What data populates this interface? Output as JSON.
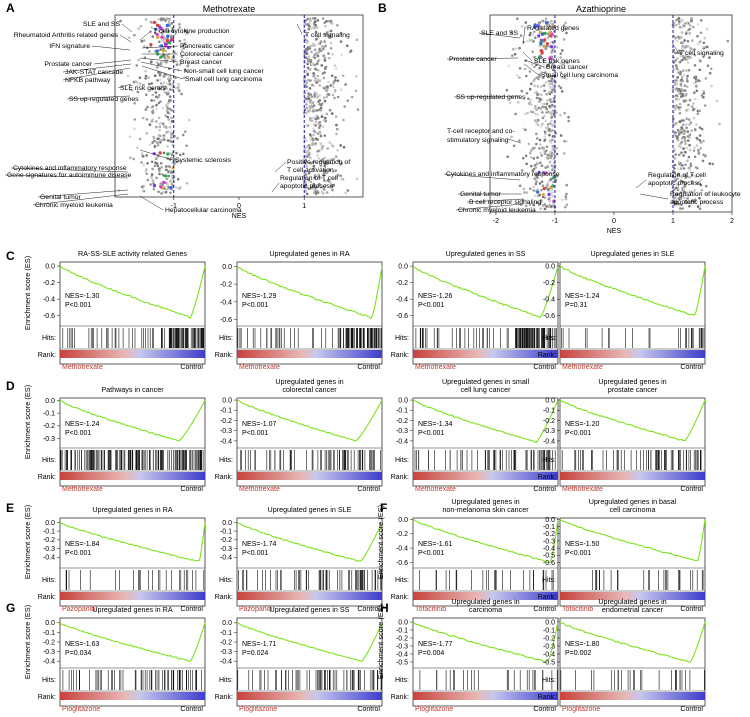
{
  "panels": {
    "A": "A",
    "B": "B",
    "C": "C",
    "D": "D",
    "E": "E",
    "F": "F",
    "G": "G",
    "H": "H"
  },
  "colors": {
    "curve": "#7ce21c",
    "drug_label": "#c33a2e",
    "dashed": "#1a1aa8",
    "rank_red": "#c8423c",
    "rank_blue": "#3d3dcc",
    "point_grey": "#8a8a8a"
  },
  "nes_common": {
    "xlabel": "NES",
    "ylabel": "Enrichment score (ES)",
    "hits_label": "Hits:",
    "rank_label": "Rank:",
    "control_label": "Control"
  },
  "chart_data": [
    {
      "id": "A",
      "type": "scatter",
      "title": "Methotrexate",
      "xlabel": "NES",
      "xlim": [
        -1.9,
        1.9
      ],
      "xticks": [
        "-1",
        "0",
        "1"
      ],
      "xtick_values": [
        -1,
        0,
        1
      ],
      "cutoffs": [
        -1,
        1
      ],
      "annotations_left": [
        "SLE and SS",
        "T cell cytokine production",
        "Rheumatoid Arthritis related genes",
        "IFN signature",
        "Pancreatic cancer",
        "Colorectal cancer",
        "Breast cancer",
        "Non-small cell lung cancer",
        "Prostate cancer",
        "Small cell lung carcinoma",
        "JAK-STAT cascade",
        "NFKB pathway",
        "SLE risk genes",
        "SS up-regulated genes",
        "Systemic sclerosis",
        "Cytokines and inflammatory response",
        "Gene signatures for autoimmune disease",
        "Genital tumor",
        "Chronic myeloid leukemia",
        "Hepatocellular carcinoma"
      ],
      "annotations_right": [
        "T cell signaling",
        "Positive regulation of T cell activation",
        "Regulation of T cell apoptotic process"
      ]
    },
    {
      "id": "B",
      "type": "scatter",
      "title": "Azathioprine",
      "xlabel": "NES",
      "xlim": [
        -2.1,
        2.0
      ],
      "xticks": [
        "-2",
        "-1",
        "0",
        "1",
        "2"
      ],
      "xtick_values": [
        -2,
        -1,
        0,
        1,
        2
      ],
      "cutoffs": [
        -1,
        1
      ],
      "annotations_left": [
        "SLE and SS",
        "RA related genes",
        "SLE risk genes",
        "Prostate cancer",
        "Breast cancer",
        "Small cell lung carcinoma",
        "SS up-regulated genes",
        "T-cell receptor and co-stimulatory signaling",
        "Cytokines and inflammatory response",
        "Genital tumor",
        "B cell receptor signaling",
        "Chronic myeloid leukemia"
      ],
      "annotations_right": [
        "T cell signaling",
        "Regulation of T cell apoptotic process",
        "Regulation of leukocyte apoptotic process"
      ]
    },
    {
      "id": "C1",
      "type": "line",
      "title": "RA-SS-SLE activity related Genes",
      "nes": "NES=-1.30",
      "p": "P<0.001",
      "drug": "Methotrexate",
      "ylim": [
        -0.7,
        0.05
      ],
      "yticks": [
        "-0.6",
        "-0.4",
        "-0.2",
        "0.0"
      ],
      "ytick_values": [
        -0.6,
        -0.4,
        -0.2,
        0.0
      ],
      "min_es": -0.62,
      "min_at": 0.9,
      "hit_profile": "dense-right",
      "rank_colors": [
        "#c8423c",
        "#3d3dcc"
      ]
    },
    {
      "id": "C2",
      "type": "line",
      "title": "Upregulated genes in RA",
      "nes": "NES=-1.29",
      "p": "P<0.001",
      "drug": "Methotrexate",
      "ylim": [
        -0.65,
        0.05
      ],
      "yticks": [
        "-0.6",
        "-0.4",
        "-0.2",
        "0.0"
      ],
      "ytick_values": [
        -0.6,
        -0.4,
        -0.2,
        0.0
      ],
      "min_es": -0.58,
      "min_at": 0.93,
      "hit_profile": "dense-right"
    },
    {
      "id": "C3",
      "type": "line",
      "title": "Upregulated genes in SS",
      "nes": "NES=-1.26",
      "p": "P<0.001",
      "drug": "Methotrexate",
      "ylim": [
        -0.7,
        0.05
      ],
      "yticks": [
        "-0.6",
        "-0.4",
        "-0.2",
        "0.0"
      ],
      "ytick_values": [
        -0.6,
        -0.4,
        -0.2,
        0.0
      ],
      "min_es": -0.62,
      "min_at": 0.88,
      "hit_profile": "dense-right"
    },
    {
      "id": "C4",
      "type": "line",
      "title": "Upregulated genes in SLE",
      "nes": "NES=-1.24",
      "p": "P=0.31",
      "drug": "Methotrexate",
      "ylim": [
        -0.7,
        0.05
      ],
      "yticks": [
        "-0.6",
        "-0.4",
        "-0.2",
        "0.0"
      ],
      "ytick_values": [
        -0.6,
        -0.4,
        -0.2,
        0.0
      ],
      "min_es": -0.6,
      "min_at": 0.93,
      "hit_profile": "sparse-right"
    },
    {
      "id": "D1",
      "type": "line",
      "title": "Pathways in cancer",
      "nes": "NES=-1.24",
      "p": "P<0.001",
      "drug": "Methotrexate",
      "ylim": [
        -0.36,
        0.02
      ],
      "yticks": [
        "-0.3",
        "-0.2",
        "-0.1",
        "0.0"
      ],
      "ytick_values": [
        -0.3,
        -0.2,
        -0.1,
        0.0
      ],
      "min_es": -0.32,
      "min_at": 0.82,
      "hit_profile": "dense-all"
    },
    {
      "id": "D2",
      "type": "line",
      "title": "Upregulated genes in colorectal cancer",
      "nes": "NES=-1.07",
      "p": "P<0.001",
      "drug": "Methotrexate",
      "ylim": [
        -0.45,
        0.02
      ],
      "yticks": [
        "-0.4",
        "-0.3",
        "-0.2",
        "-0.1",
        "0.0"
      ],
      "ytick_values": [
        -0.4,
        -0.3,
        -0.2,
        -0.1,
        0.0
      ],
      "min_es": -0.4,
      "min_at": 0.82,
      "hit_profile": "medium-right"
    },
    {
      "id": "D3",
      "type": "line",
      "title": "Upregulated genes in small cell lung cancer",
      "nes": "NES=-1.34",
      "p": "P<0.001",
      "drug": "Methotrexate",
      "ylim": [
        -0.45,
        0.02
      ],
      "yticks": [
        "-0.4",
        "-0.3",
        "-0.2",
        "-0.1",
        "0.0"
      ],
      "ytick_values": [
        -0.4,
        -0.3,
        -0.2,
        -0.1,
        0.0
      ],
      "min_es": -0.41,
      "min_at": 0.85,
      "hit_profile": "medium-right"
    },
    {
      "id": "D4",
      "type": "line",
      "title": "Upregulated genes in prostate cancer",
      "nes": "NES=-1.20",
      "p": "P<0.001",
      "drug": "Methotrexate",
      "ylim": [
        -0.45,
        0.02
      ],
      "yticks": [
        "-0.4",
        "-0.3",
        "-0.2",
        "-0.1",
        "0.0"
      ],
      "ytick_values": [
        -0.4,
        -0.3,
        -0.2,
        -0.1,
        0.0
      ],
      "min_es": -0.4,
      "min_at": 0.86,
      "hit_profile": "medium-right"
    },
    {
      "id": "E1",
      "type": "line",
      "title": "Upregulated genes in RA",
      "nes": "NES=-1.84",
      "p": "P<0.001",
      "drug": "Pazopanib",
      "ylim": [
        -0.5,
        0.05
      ],
      "yticks": [
        "-0.4",
        "-0.3",
        "-0.2",
        "-0.1",
        "0.0"
      ],
      "ytick_values": [
        -0.4,
        -0.3,
        -0.2,
        -0.1,
        0.0
      ],
      "min_es": -0.45,
      "min_at": 0.96,
      "hit_profile": "sparse-spread"
    },
    {
      "id": "E2",
      "type": "line",
      "title": "Upregulated genes in SLE",
      "nes": "NES=-1.74",
      "p": "P<0.001",
      "drug": "Pazopanib",
      "ylim": [
        -0.5,
        0.05
      ],
      "yticks": [
        "-0.4",
        "-0.3",
        "-0.2",
        "-0.1",
        "0.0"
      ],
      "ytick_values": [
        -0.4,
        -0.3,
        -0.2,
        -0.1,
        0.0
      ],
      "min_es": -0.45,
      "min_at": 0.85,
      "hit_profile": "medium-right"
    },
    {
      "id": "F1",
      "type": "line",
      "title": "Upregulated genes in non-melanoma skin cancer",
      "nes": "NES=-1.61",
      "p": "P<0.001",
      "drug": "Tofacitinib",
      "ylim": [
        -0.65,
        0.02
      ],
      "yticks": [
        "-0.6",
        "-0.4",
        "-0.2",
        "0.0"
      ],
      "ytick_values": [
        -0.6,
        -0.4,
        -0.2,
        0.0
      ],
      "min_es": -0.6,
      "min_at": 0.95,
      "hit_profile": "sparse-spread"
    },
    {
      "id": "F2",
      "type": "line",
      "title": "Upregulated genes in basal cell carcinoma",
      "nes": "NES=-1.50",
      "p": "P<0.001",
      "drug": "Tofacitinib",
      "ylim": [
        -0.65,
        0.02
      ],
      "yticks": [
        "-0.6",
        "-0.5",
        "-0.4",
        "-0.3",
        "-0.2",
        "-0.1",
        "0.0"
      ],
      "ytick_values": [
        -0.6,
        -0.5,
        -0.4,
        -0.3,
        -0.2,
        -0.1,
        0.0
      ],
      "min_es": -0.58,
      "min_at": 0.95,
      "hit_profile": "sparse-spread"
    },
    {
      "id": "G1",
      "type": "line",
      "title": "Upregulated genes in RA",
      "nes": "NES=-1.63",
      "p": "P=0.034",
      "drug": "Pioglitazone",
      "ylim": [
        -0.45,
        0.05
      ],
      "yticks": [
        "-0.4",
        "-0.3",
        "-0.2",
        "-0.1",
        "0.0"
      ],
      "ytick_values": [
        -0.4,
        -0.3,
        -0.2,
        -0.1,
        0.0
      ],
      "min_es": -0.4,
      "min_at": 0.9,
      "hit_profile": "medium-right"
    },
    {
      "id": "G2",
      "type": "line",
      "title": "Upregulated genes in SS",
      "nes": "NES=-1.71",
      "p": "P=0.024",
      "drug": "Pioglitazone",
      "ylim": [
        -0.45,
        0.05
      ],
      "yticks": [
        "-0.4",
        "-0.3",
        "-0.2",
        "-0.1",
        "0.0"
      ],
      "ytick_values": [
        -0.4,
        -0.3,
        -0.2,
        -0.1,
        0.0
      ],
      "min_es": -0.4,
      "min_at": 0.86,
      "hit_profile": "medium-right"
    },
    {
      "id": "H1",
      "type": "line",
      "title": "Upregulated genes in carcinoma",
      "nes": "NES=-1.77",
      "p": "P=0.004",
      "drug": "Pioglitazone",
      "ylim": [
        -0.55,
        0.05
      ],
      "yticks": [
        "-0.5",
        "-0.4",
        "-0.3",
        "-0.2",
        "-0.1",
        "0.0"
      ],
      "ytick_values": [
        -0.5,
        -0.4,
        -0.3,
        -0.2,
        -0.1,
        0.0
      ],
      "min_es": -0.5,
      "min_at": 0.93,
      "hit_profile": "sparse-spread"
    },
    {
      "id": "H2",
      "type": "line",
      "title": "Upregulated genes in endometrial cancer",
      "nes": "NES=-1.80",
      "p": "P=0.002",
      "drug": "Pioglitazone",
      "ylim": [
        -0.55,
        0.05
      ],
      "yticks": [
        "-0.5",
        "-0.4",
        "-0.3",
        "-0.2",
        "-0.1",
        "0.0"
      ],
      "ytick_values": [
        -0.5,
        -0.4,
        -0.3,
        -0.2,
        -0.1,
        0.0
      ],
      "min_es": -0.5,
      "min_at": 0.9,
      "hit_profile": "sparse-spread"
    }
  ]
}
